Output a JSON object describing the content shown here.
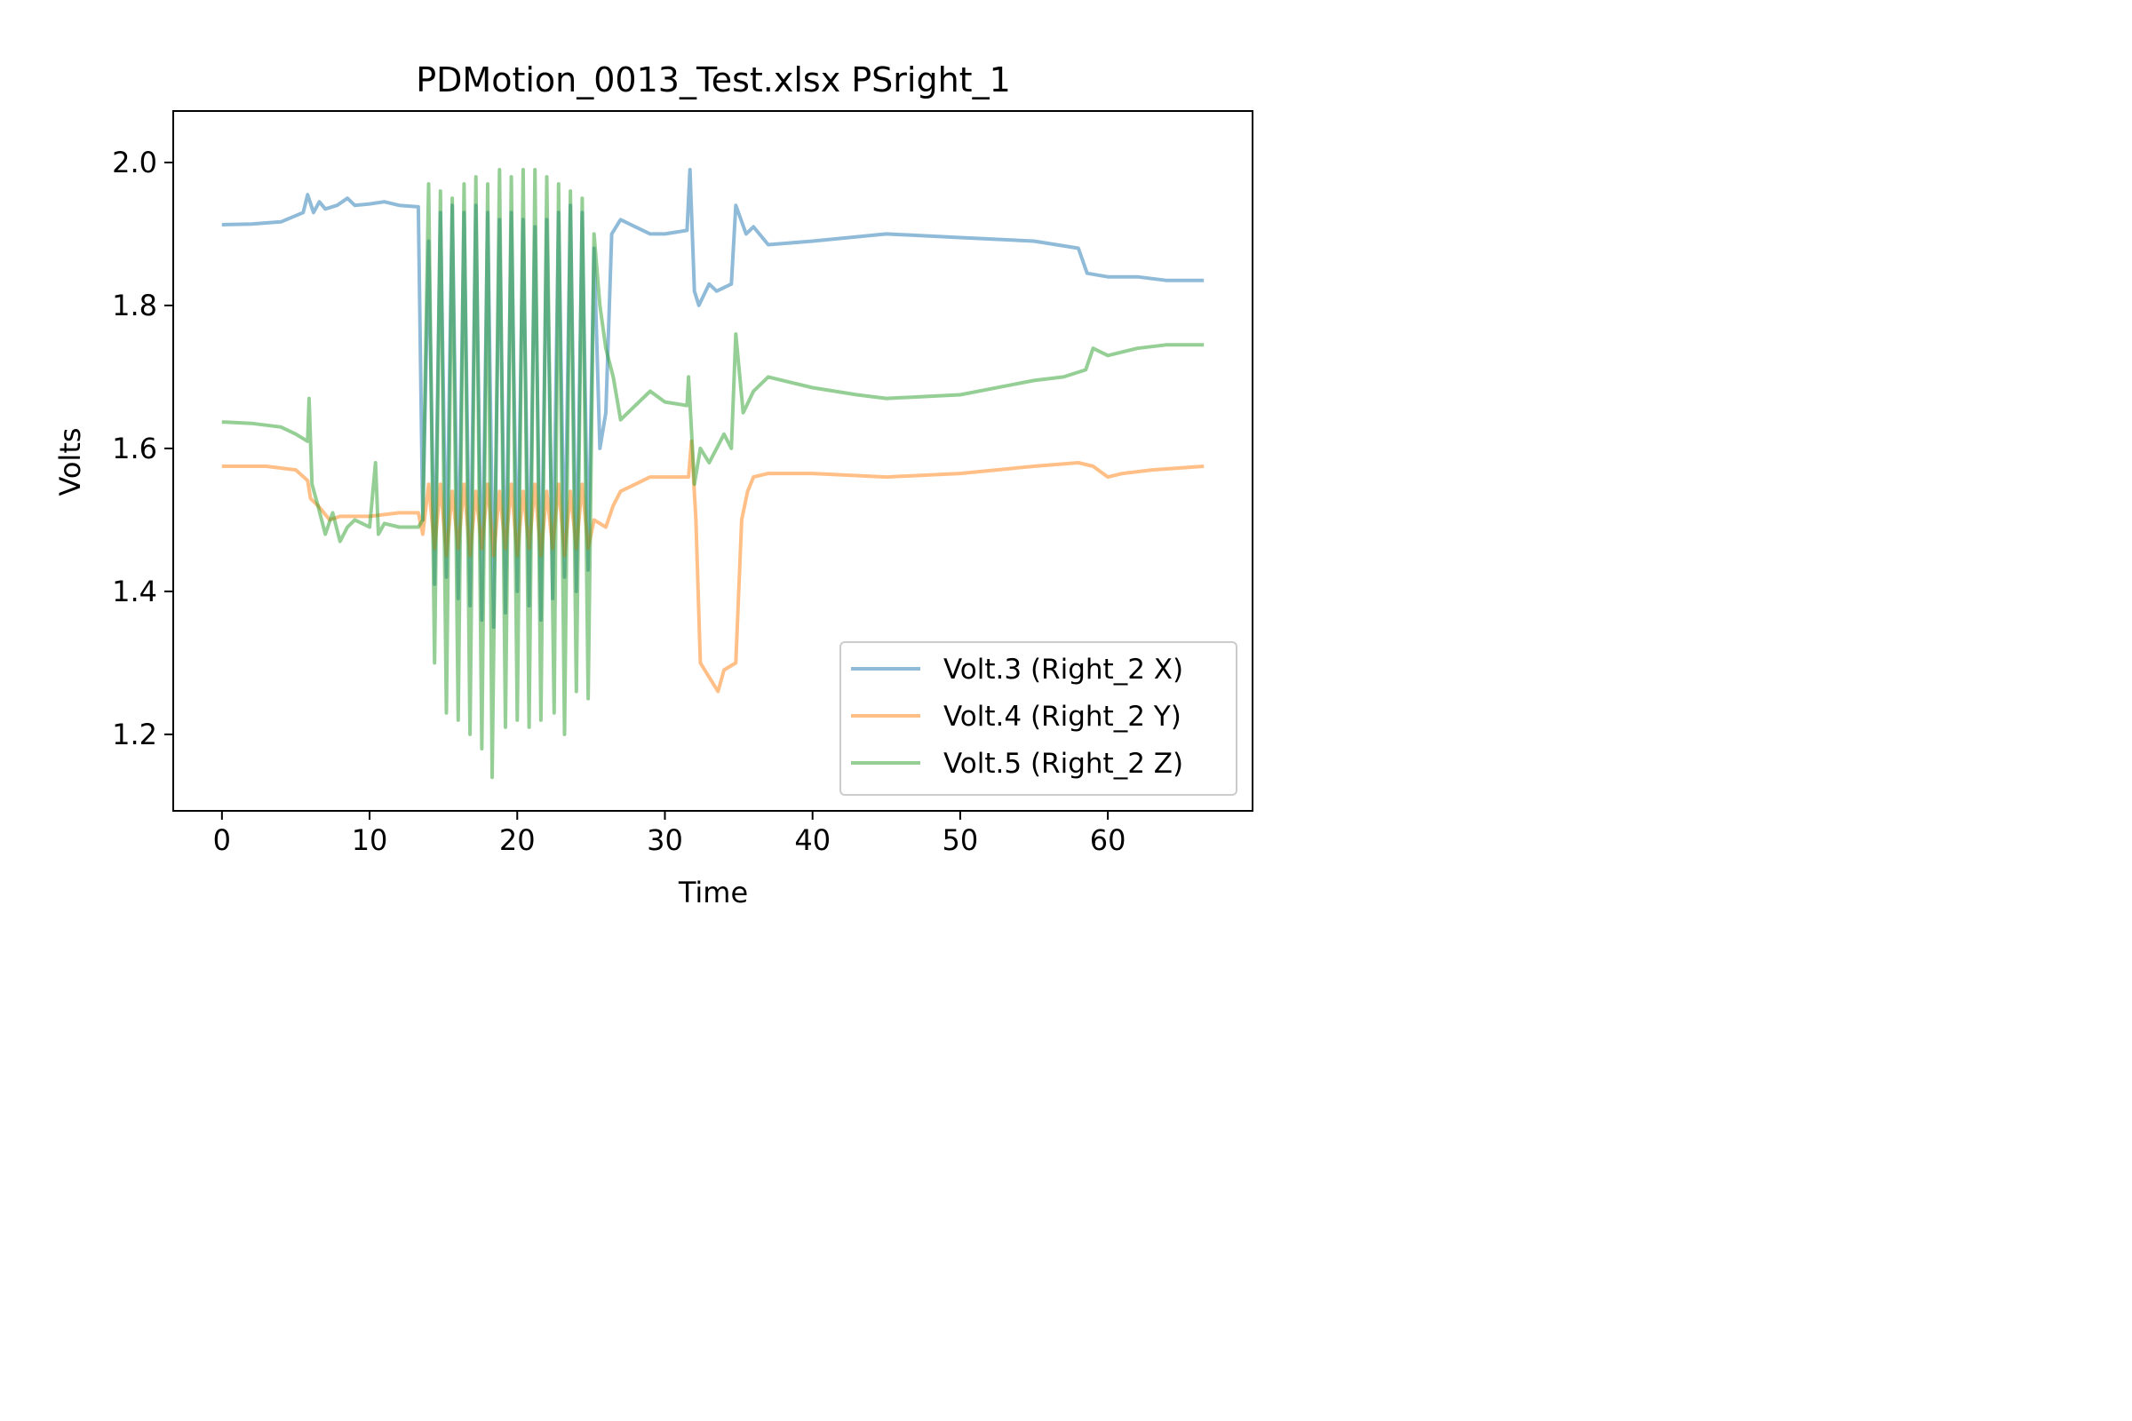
{
  "chart_data": {
    "type": "line",
    "title": "PDMotion_0013_Test.xlsx PSright_1",
    "xlabel": "Time",
    "ylabel": "Volts",
    "xlim": [
      -3.3,
      69.8
    ],
    "ylim": [
      1.093,
      2.072
    ],
    "xticks": [
      0,
      10,
      20,
      30,
      40,
      50,
      60
    ],
    "xtick_labels": [
      "0",
      "10",
      "20",
      "30",
      "40",
      "50",
      "60"
    ],
    "yticks": [
      1.2,
      1.4,
      1.6,
      1.8,
      2.0
    ],
    "ytick_labels": [
      "1.2",
      "1.4",
      "1.6",
      "1.8",
      "2.0"
    ],
    "grid": false,
    "legend_position": "lower-right",
    "line_alpha": 0.5,
    "series": [
      {
        "name": "Volt.3 (Right_2 X)",
        "color": "#1f77b4",
        "points": [
          [
            0,
            1.913
          ],
          [
            2,
            1.914
          ],
          [
            4,
            1.917
          ],
          [
            5.5,
            1.93
          ],
          [
            5.8,
            1.955
          ],
          [
            6.2,
            1.93
          ],
          [
            6.6,
            1.945
          ],
          [
            7,
            1.935
          ],
          [
            7.8,
            1.94
          ],
          [
            8.5,
            1.95
          ],
          [
            9,
            1.94
          ],
          [
            10,
            1.942
          ],
          [
            11,
            1.945
          ],
          [
            12,
            1.94
          ],
          [
            13.3,
            1.938
          ],
          [
            13.6,
            1.5
          ],
          [
            14,
            1.89
          ],
          [
            14.4,
            1.41
          ],
          [
            14.8,
            1.93
          ],
          [
            15.2,
            1.42
          ],
          [
            15.6,
            1.94
          ],
          [
            16,
            1.39
          ],
          [
            16.4,
            1.93
          ],
          [
            16.8,
            1.38
          ],
          [
            17.2,
            1.94
          ],
          [
            17.6,
            1.36
          ],
          [
            18,
            1.93
          ],
          [
            18.4,
            1.35
          ],
          [
            18.8,
            1.92
          ],
          [
            19.2,
            1.37
          ],
          [
            19.6,
            1.93
          ],
          [
            20,
            1.4
          ],
          [
            20.4,
            1.92
          ],
          [
            20.8,
            1.38
          ],
          [
            21.2,
            1.91
          ],
          [
            21.6,
            1.36
          ],
          [
            22,
            1.92
          ],
          [
            22.4,
            1.39
          ],
          [
            22.8,
            1.93
          ],
          [
            23.2,
            1.42
          ],
          [
            23.6,
            1.94
          ],
          [
            24,
            1.4
          ],
          [
            24.4,
            1.93
          ],
          [
            24.8,
            1.43
          ],
          [
            25.2,
            1.88
          ],
          [
            25.6,
            1.6
          ],
          [
            26,
            1.65
          ],
          [
            26.4,
            1.9
          ],
          [
            27,
            1.92
          ],
          [
            28,
            1.91
          ],
          [
            29,
            1.9
          ],
          [
            30,
            1.9
          ],
          [
            31.5,
            1.905
          ],
          [
            31.7,
            1.99
          ],
          [
            32,
            1.82
          ],
          [
            32.3,
            1.8
          ],
          [
            33,
            1.83
          ],
          [
            33.5,
            1.82
          ],
          [
            34.5,
            1.83
          ],
          [
            34.8,
            1.94
          ],
          [
            35.5,
            1.9
          ],
          [
            36,
            1.91
          ],
          [
            37,
            1.885
          ],
          [
            40,
            1.89
          ],
          [
            45,
            1.9
          ],
          [
            50,
            1.895
          ],
          [
            55,
            1.89
          ],
          [
            58,
            1.88
          ],
          [
            58.6,
            1.845
          ],
          [
            60,
            1.84
          ],
          [
            62,
            1.84
          ],
          [
            64,
            1.835
          ],
          [
            66.5,
            1.835
          ]
        ]
      },
      {
        "name": "Volt.4 (Right_2 Y)",
        "color": "#ff7f0e",
        "points": [
          [
            0,
            1.575
          ],
          [
            3,
            1.575
          ],
          [
            5,
            1.57
          ],
          [
            5.8,
            1.555
          ],
          [
            6,
            1.53
          ],
          [
            6.5,
            1.52
          ],
          [
            7.3,
            1.5
          ],
          [
            8,
            1.505
          ],
          [
            10,
            1.505
          ],
          [
            12,
            1.51
          ],
          [
            13.3,
            1.51
          ],
          [
            13.6,
            1.48
          ],
          [
            14,
            1.55
          ],
          [
            14.4,
            1.46
          ],
          [
            14.8,
            1.55
          ],
          [
            15.2,
            1.45
          ],
          [
            15.6,
            1.54
          ],
          [
            16,
            1.46
          ],
          [
            16.4,
            1.55
          ],
          [
            16.8,
            1.45
          ],
          [
            17.2,
            1.54
          ],
          [
            17.6,
            1.46
          ],
          [
            18,
            1.55
          ],
          [
            18.4,
            1.45
          ],
          [
            18.8,
            1.54
          ],
          [
            19.2,
            1.46
          ],
          [
            19.6,
            1.55
          ],
          [
            20,
            1.45
          ],
          [
            20.4,
            1.54
          ],
          [
            20.8,
            1.46
          ],
          [
            21.2,
            1.55
          ],
          [
            21.6,
            1.45
          ],
          [
            22,
            1.54
          ],
          [
            22.4,
            1.46
          ],
          [
            22.8,
            1.55
          ],
          [
            23.2,
            1.45
          ],
          [
            23.6,
            1.54
          ],
          [
            24,
            1.46
          ],
          [
            24.4,
            1.55
          ],
          [
            24.8,
            1.46
          ],
          [
            25.2,
            1.5
          ],
          [
            26,
            1.49
          ],
          [
            26.5,
            1.52
          ],
          [
            27,
            1.54
          ],
          [
            28,
            1.55
          ],
          [
            29,
            1.56
          ],
          [
            31,
            1.56
          ],
          [
            31.6,
            1.56
          ],
          [
            31.8,
            1.61
          ],
          [
            32.1,
            1.5
          ],
          [
            32.4,
            1.3
          ],
          [
            33,
            1.28
          ],
          [
            33.6,
            1.26
          ],
          [
            34,
            1.29
          ],
          [
            34.8,
            1.3
          ],
          [
            35.2,
            1.5
          ],
          [
            35.6,
            1.54
          ],
          [
            36,
            1.56
          ],
          [
            37,
            1.565
          ],
          [
            40,
            1.565
          ],
          [
            45,
            1.56
          ],
          [
            50,
            1.565
          ],
          [
            55,
            1.575
          ],
          [
            58,
            1.58
          ],
          [
            59,
            1.575
          ],
          [
            60,
            1.56
          ],
          [
            61,
            1.565
          ],
          [
            63,
            1.57
          ],
          [
            66.5,
            1.575
          ]
        ]
      },
      {
        "name": "Volt.5 (Right_2 Z)",
        "color": "#2ca02c",
        "points": [
          [
            0,
            1.637
          ],
          [
            2,
            1.635
          ],
          [
            4,
            1.63
          ],
          [
            5,
            1.62
          ],
          [
            5.8,
            1.61
          ],
          [
            5.9,
            1.67
          ],
          [
            6.1,
            1.55
          ],
          [
            6.5,
            1.52
          ],
          [
            7,
            1.48
          ],
          [
            7.5,
            1.51
          ],
          [
            8,
            1.47
          ],
          [
            8.5,
            1.49
          ],
          [
            9,
            1.5
          ],
          [
            10,
            1.49
          ],
          [
            10.4,
            1.58
          ],
          [
            10.6,
            1.48
          ],
          [
            11,
            1.495
          ],
          [
            12,
            1.49
          ],
          [
            13.3,
            1.49
          ],
          [
            13.6,
            1.5
          ],
          [
            14,
            1.97
          ],
          [
            14.4,
            1.3
          ],
          [
            14.8,
            1.96
          ],
          [
            15.2,
            1.23
          ],
          [
            15.6,
            1.95
          ],
          [
            16,
            1.22
          ],
          [
            16.4,
            1.97
          ],
          [
            16.8,
            1.2
          ],
          [
            17.2,
            1.98
          ],
          [
            17.6,
            1.18
          ],
          [
            18,
            1.97
          ],
          [
            18.3,
            1.14
          ],
          [
            18.8,
            1.99
          ],
          [
            19.2,
            1.21
          ],
          [
            19.6,
            1.98
          ],
          [
            20,
            1.22
          ],
          [
            20.4,
            1.99
          ],
          [
            20.8,
            1.21
          ],
          [
            21.2,
            1.99
          ],
          [
            21.6,
            1.22
          ],
          [
            22,
            1.98
          ],
          [
            22.5,
            1.23
          ],
          [
            22.8,
            1.97
          ],
          [
            23.2,
            1.2
          ],
          [
            23.6,
            1.96
          ],
          [
            24,
            1.26
          ],
          [
            24.4,
            1.95
          ],
          [
            24.8,
            1.25
          ],
          [
            25.2,
            1.9
          ],
          [
            25.6,
            1.8
          ],
          [
            26,
            1.74
          ],
          [
            26.5,
            1.7
          ],
          [
            27,
            1.64
          ],
          [
            28,
            1.66
          ],
          [
            29,
            1.68
          ],
          [
            30,
            1.665
          ],
          [
            31.5,
            1.66
          ],
          [
            31.6,
            1.7
          ],
          [
            32,
            1.55
          ],
          [
            32.4,
            1.6
          ],
          [
            33,
            1.58
          ],
          [
            33.5,
            1.6
          ],
          [
            34,
            1.62
          ],
          [
            34.5,
            1.6
          ],
          [
            34.8,
            1.76
          ],
          [
            35.3,
            1.65
          ],
          [
            36,
            1.68
          ],
          [
            37,
            1.7
          ],
          [
            40,
            1.685
          ],
          [
            43,
            1.675
          ],
          [
            45,
            1.67
          ],
          [
            50,
            1.675
          ],
          [
            55,
            1.695
          ],
          [
            57,
            1.7
          ],
          [
            58.5,
            1.71
          ],
          [
            59,
            1.74
          ],
          [
            60,
            1.73
          ],
          [
            62,
            1.74
          ],
          [
            64,
            1.745
          ],
          [
            66.5,
            1.745
          ]
        ]
      }
    ]
  }
}
